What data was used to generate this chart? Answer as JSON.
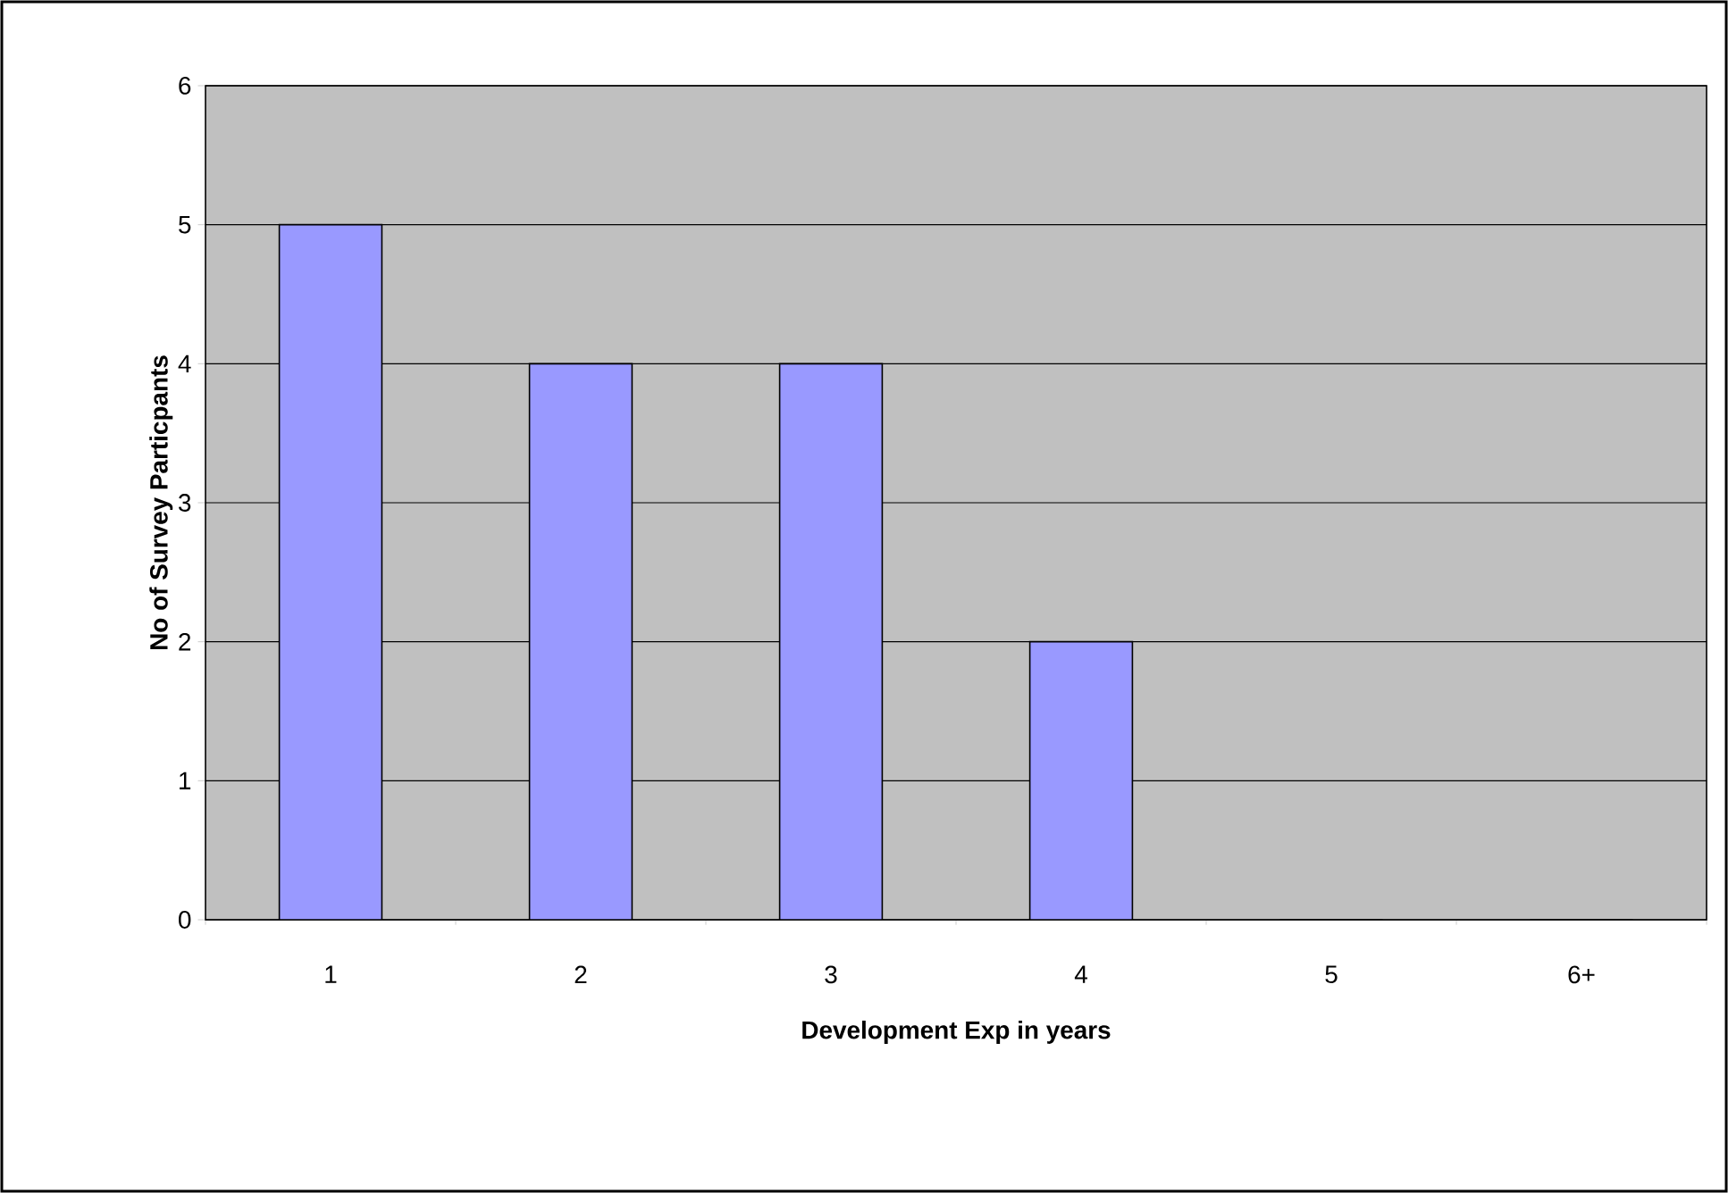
{
  "chart_data": {
    "type": "bar",
    "xlabel": "Development Exp in years",
    "ylabel": "No of Survey Particpants",
    "categories": [
      "1",
      "2",
      "3",
      "4",
      "5",
      "6+"
    ],
    "values": [
      5,
      4,
      4,
      2,
      0,
      0
    ],
    "color": "#9999ff",
    "ylim": [
      0,
      6
    ],
    "yticks": [
      0,
      1,
      2,
      3,
      4,
      5,
      6
    ],
    "grid": "y"
  }
}
